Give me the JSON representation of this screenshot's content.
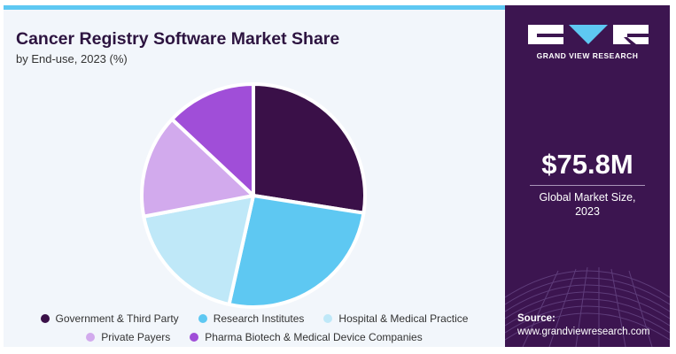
{
  "chart_data": {
    "type": "pie",
    "title": "Cancer Registry Software Market Share",
    "subtitle": "by End-use, 2023 (%)",
    "legend_position": "bottom",
    "slices": [
      {
        "name": "Government & Third Party",
        "value": 27.5,
        "color": "#3a1048"
      },
      {
        "name": "Research Institutes",
        "value": 26.0,
        "color": "#5ec8f2"
      },
      {
        "name": "Hospital & Medical Practice",
        "value": 18.5,
        "color": "#bfe8f8"
      },
      {
        "name": "Private Payers",
        "value": 15.0,
        "color": "#d2aaed"
      },
      {
        "name": "Pharma Biotech & Medical Device Companies",
        "value": 13.0,
        "color": "#a04ed8"
      }
    ]
  },
  "legend": {
    "row1": [
      {
        "label": "Government & Third Party",
        "color": "#3a1048"
      },
      {
        "label": "Research Institutes",
        "color": "#5ec8f2"
      },
      {
        "label": "Hospital & Medical Practice",
        "color": "#bfe8f8"
      }
    ],
    "row2": [
      {
        "label": "Private Payers",
        "color": "#d2aaed"
      },
      {
        "label": "Pharma Biotech & Medical Device Companies",
        "color": "#a04ed8"
      }
    ]
  },
  "sidebar": {
    "brand": "GRAND VIEW RESEARCH",
    "market_size": "$75.8M",
    "market_size_label_line1": "Global Market Size,",
    "market_size_label_line2": "2023",
    "source_label": "Source:",
    "source_url": "www.grandviewresearch.com"
  },
  "colors": {
    "sidebar_bg": "#3c1550",
    "accent": "#5ec8f2",
    "title": "#2d1440"
  }
}
